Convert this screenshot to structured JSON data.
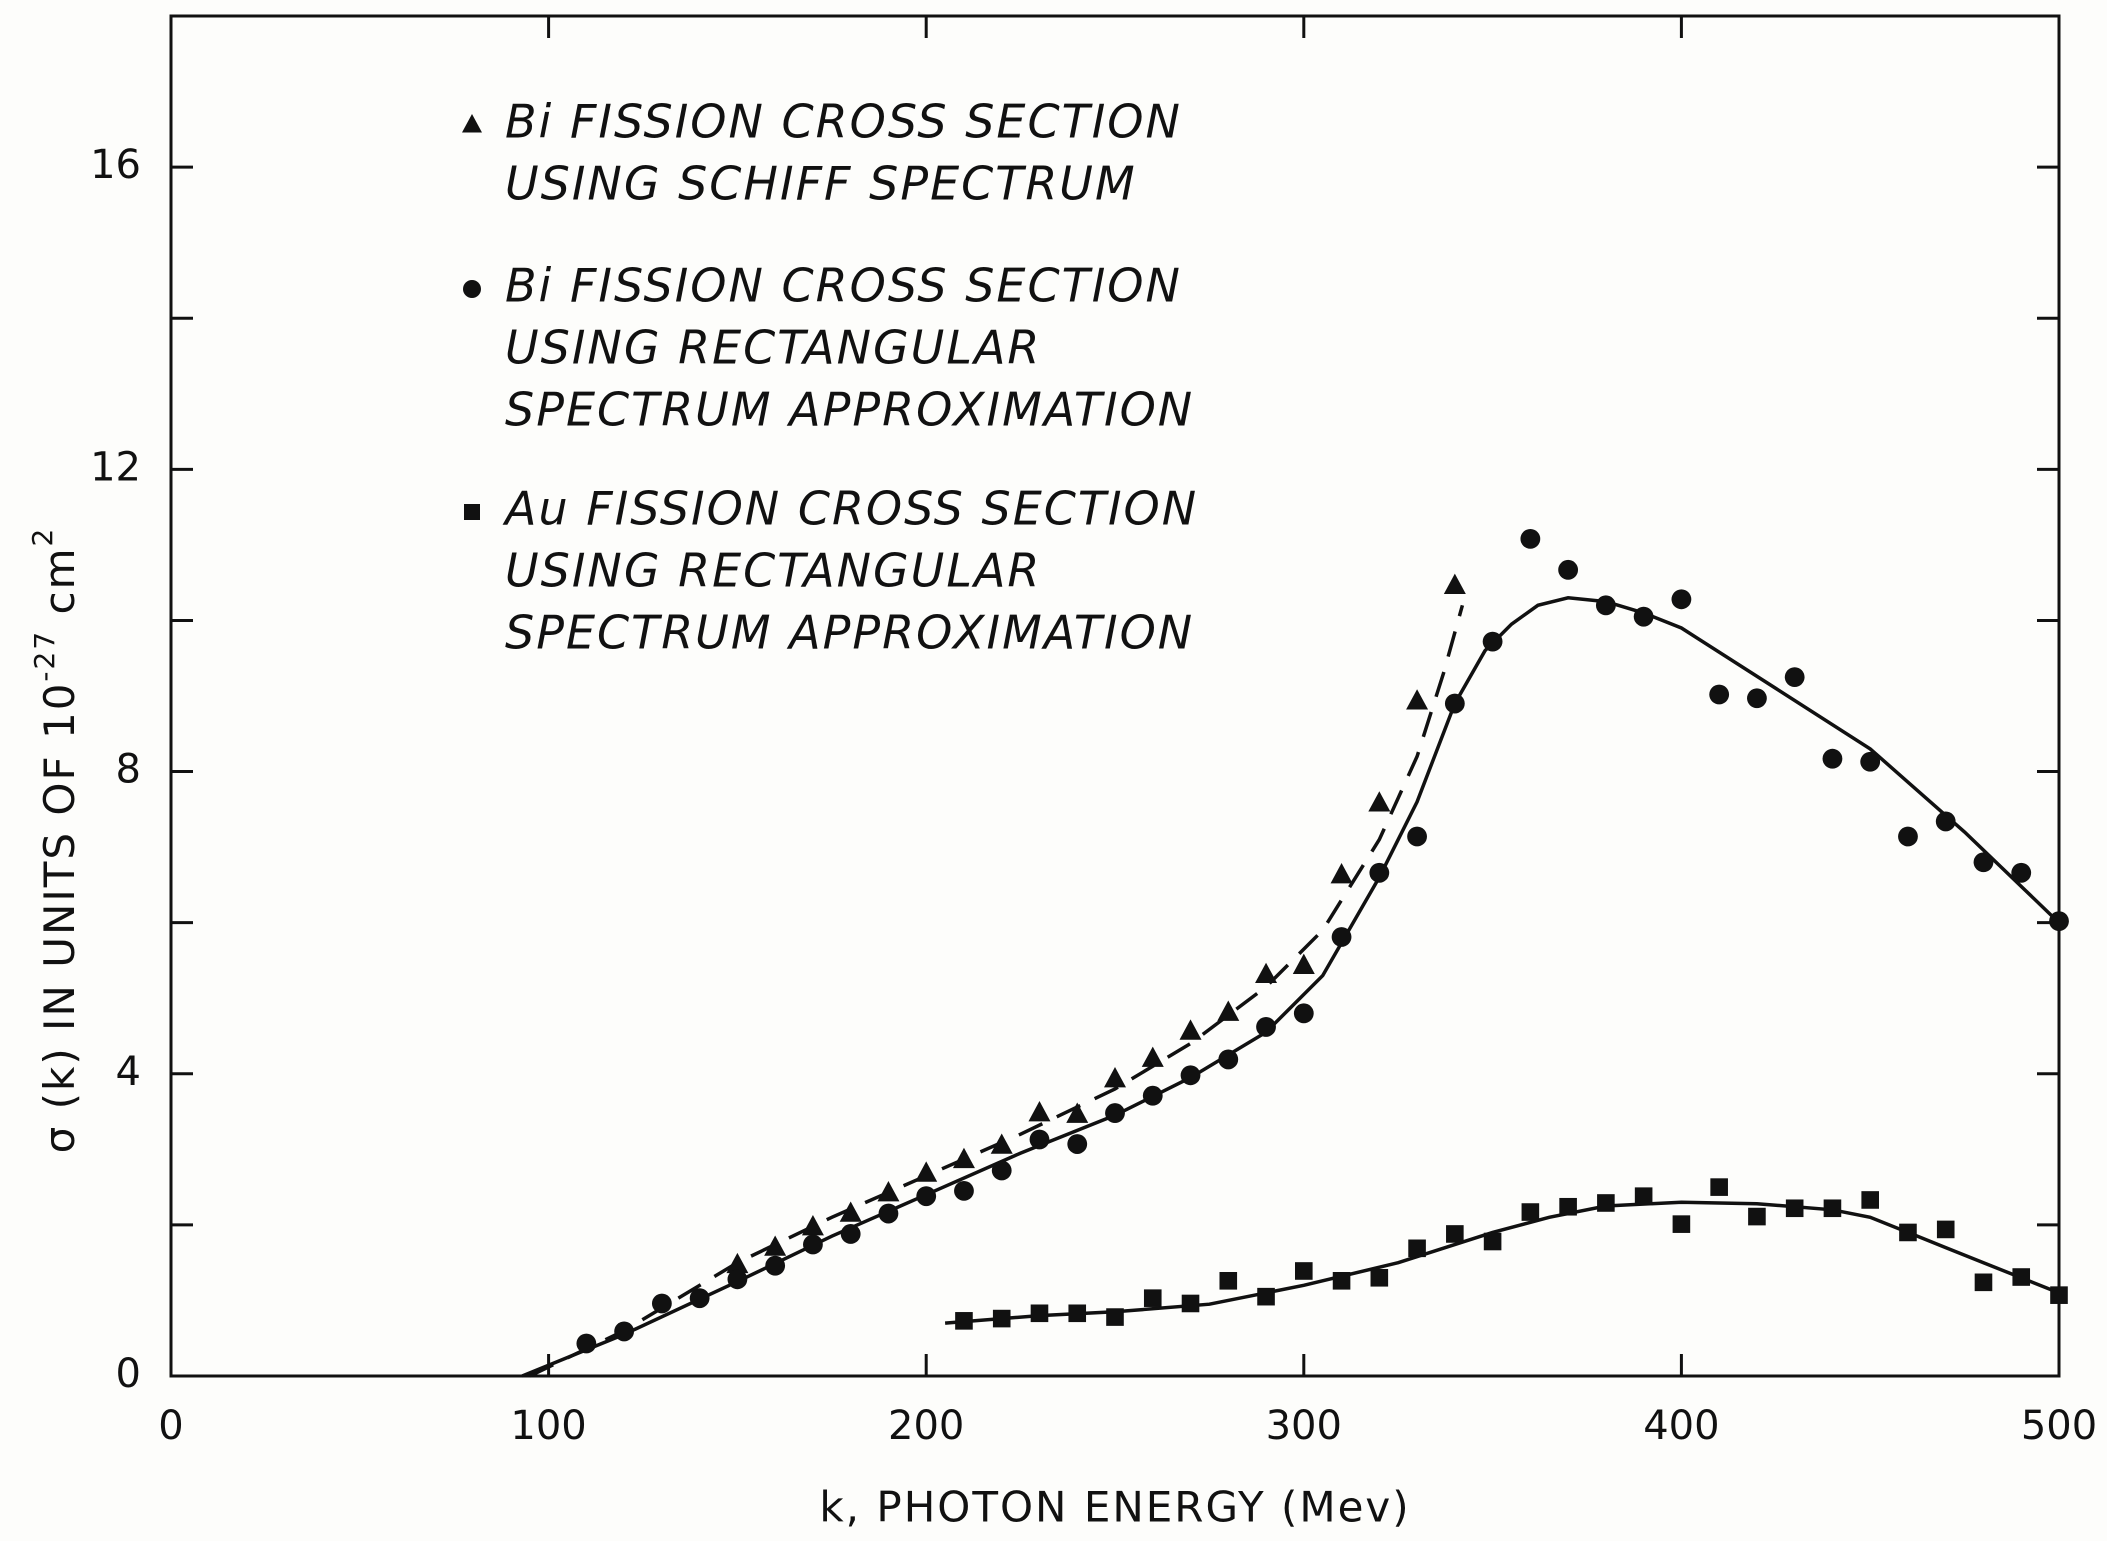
{
  "chart_data": {
    "type": "scatter",
    "xlabel": "k, PHOTON ENERGY (Mev)",
    "ylabel": {
      "text": "σ (k) IN UNITS OF 10",
      "exp": "-27",
      "unit": " cm",
      "unit_exp": "2"
    },
    "xlim": [
      0,
      500
    ],
    "ylim": [
      0,
      18
    ],
    "xticks": [
      0,
      100,
      200,
      300,
      400,
      500
    ],
    "yticks": [
      0,
      4,
      8,
      12,
      16
    ],
    "minor_yticks": [
      2,
      6,
      10,
      14
    ],
    "color": "#111111",
    "series": [
      {
        "name": [
          "Bi FISSION CROSS SECTION",
          "USING SCHIFF SPECTRUM"
        ],
        "marker": "triangle",
        "x": [
          150,
          160,
          170,
          180,
          190,
          200,
          210,
          220,
          230,
          240,
          250,
          260,
          270,
          280,
          290,
          300,
          310,
          320,
          330,
          340
        ],
        "values": [
          1.47,
          1.7,
          1.97,
          2.15,
          2.42,
          2.68,
          2.86,
          3.05,
          3.48,
          3.46,
          3.93,
          4.2,
          4.56,
          4.81,
          5.31,
          5.43,
          6.63,
          7.58,
          8.93,
          10.46
        ]
      },
      {
        "name": [
          "Bi FISSION CROSS SECTION",
          "USING RECTANGULAR",
          "SPECTRUM APPROXIMATION"
        ],
        "marker": "circle",
        "x": [
          110,
          120,
          130,
          140,
          150,
          160,
          170,
          180,
          190,
          200,
          210,
          220,
          230,
          240,
          250,
          260,
          270,
          280,
          290,
          300,
          310,
          320,
          330,
          340,
          350,
          360,
          370,
          380,
          390,
          400,
          410,
          420,
          430,
          440,
          450,
          460,
          470,
          480,
          490,
          500
        ],
        "values": [
          0.43,
          0.59,
          0.96,
          1.03,
          1.28,
          1.46,
          1.74,
          1.88,
          2.15,
          2.38,
          2.45,
          2.72,
          3.13,
          3.07,
          3.48,
          3.71,
          3.98,
          4.19,
          4.62,
          4.8,
          5.81,
          6.66,
          7.14,
          8.9,
          9.72,
          11.08,
          10.67,
          10.2,
          10.05,
          10.28,
          9.02,
          8.97,
          9.25,
          8.17,
          8.13,
          7.14,
          7.34,
          6.8,
          6.66,
          6.02
        ]
      },
      {
        "name": [
          "Au FISSION CROSS SECTION",
          "USING RECTANGULAR",
          "SPECTRUM APPROXIMATION"
        ],
        "marker": "square",
        "x": [
          210,
          220,
          230,
          240,
          250,
          260,
          270,
          280,
          290,
          300,
          310,
          320,
          330,
          340,
          350,
          360,
          370,
          380,
          390,
          400,
          410,
          420,
          430,
          440,
          450,
          460,
          470,
          480,
          490,
          500
        ],
        "values": [
          0.73,
          0.76,
          0.83,
          0.83,
          0.78,
          1.03,
          0.96,
          1.26,
          1.05,
          1.39,
          1.26,
          1.3,
          1.69,
          1.88,
          1.78,
          2.17,
          2.24,
          2.29,
          2.38,
          2.01,
          2.5,
          2.11,
          2.22,
          2.22,
          2.33,
          1.9,
          1.94,
          1.24,
          1.31,
          1.07
        ]
      }
    ],
    "curves": [
      {
        "style": "dashed",
        "x": [
          95,
          120,
          150,
          175,
          200,
          225,
          250,
          270,
          290,
          305,
          320,
          330,
          337,
          342
        ],
        "values": [
          0,
          0.6,
          1.5,
          2.1,
          2.65,
          3.2,
          3.8,
          4.4,
          5.15,
          5.9,
          7.1,
          8.2,
          9.3,
          10.2
        ]
      },
      {
        "style": "solid",
        "x": [
          93,
          120,
          150,
          175,
          200,
          225,
          250,
          270,
          290,
          305,
          320,
          330,
          340,
          348,
          355,
          362,
          370,
          380,
          390,
          400,
          425,
          450,
          475,
          500
        ],
        "values": [
          0,
          0.55,
          1.25,
          1.85,
          2.4,
          2.95,
          3.45,
          3.95,
          4.55,
          5.3,
          6.6,
          7.6,
          8.9,
          9.6,
          9.95,
          10.2,
          10.3,
          10.25,
          10.1,
          9.9,
          9.1,
          8.3,
          7.2,
          6.0
        ]
      },
      {
        "style": "solid",
        "x": [
          205,
          230,
          250,
          275,
          300,
          325,
          350,
          365,
          380,
          400,
          420,
          440,
          450,
          460,
          470,
          480,
          490,
          500
        ],
        "values": [
          0.7,
          0.8,
          0.85,
          0.95,
          1.2,
          1.5,
          1.9,
          2.1,
          2.25,
          2.3,
          2.28,
          2.2,
          2.1,
          1.9,
          1.7,
          1.5,
          1.3,
          1.1
        ]
      }
    ]
  }
}
